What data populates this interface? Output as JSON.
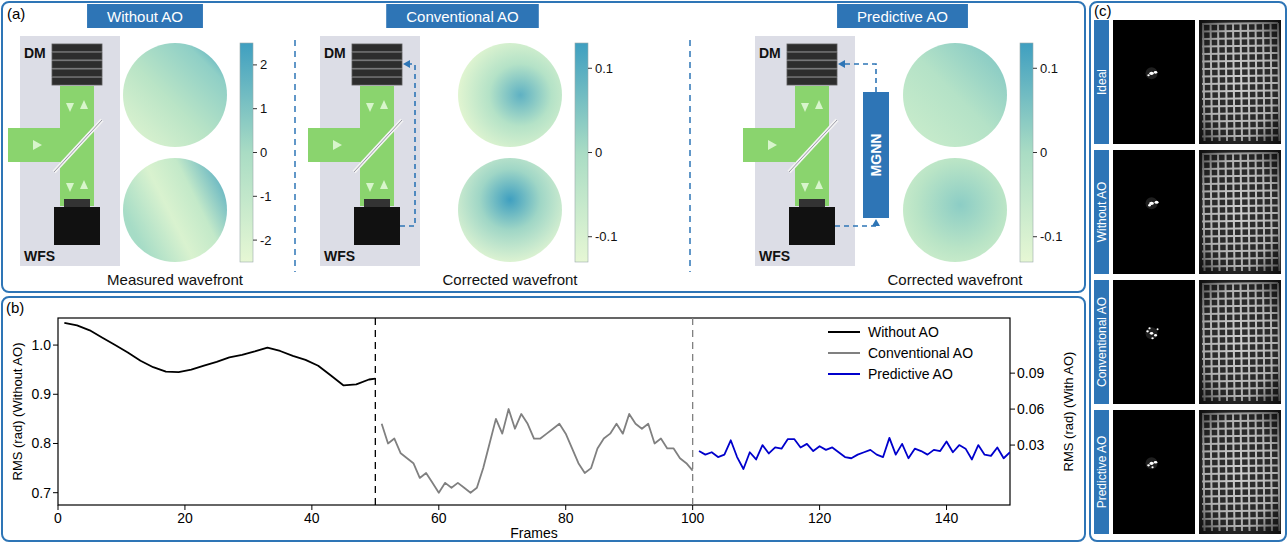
{
  "chart_data": {
    "type": "line",
    "xlabel": "Frames",
    "ylabel": "RMS (rad) (Without AO)",
    "y2label": "RMS (rad) (With AO)",
    "xlim": [
      0,
      150
    ],
    "xticks": [
      0,
      20,
      40,
      60,
      80,
      100,
      120,
      140
    ],
    "ylim": [
      0.675,
      1.055
    ],
    "yticks": [
      0.7,
      0.8,
      0.9,
      {
        "value": 1,
        "label": "1.0"
      }
    ],
    "y2lim": [
      -0.02,
      0.136
    ],
    "y2ticks": [
      0.03,
      0.06,
      0.09
    ],
    "legend": "upper right",
    "series": [
      {
        "name": "Without AO",
        "color": "#000000",
        "x": [
          1,
          3,
          5,
          7,
          9,
          11,
          13,
          15,
          17,
          19,
          21,
          23,
          25,
          27,
          29,
          31,
          33,
          35,
          37,
          39,
          41,
          43,
          45,
          47,
          49,
          50
        ],
        "values": [
          1.045,
          1.04,
          1.03,
          1.015,
          1.0,
          0.985,
          0.968,
          0.955,
          0.946,
          0.945,
          0.95,
          0.958,
          0.966,
          0.975,
          0.98,
          0.987,
          0.995,
          0.988,
          0.978,
          0.97,
          0.958,
          0.938,
          0.918,
          0.92,
          0.93,
          0.932
        ]
      },
      {
        "name": "Conventional AO",
        "color": "#808080",
        "x": [
          51,
          52,
          53,
          54,
          55,
          56,
          57,
          58,
          59,
          60,
          61,
          62,
          63,
          64,
          65,
          66,
          67,
          68,
          69,
          70,
          71,
          72,
          73,
          74,
          75,
          76,
          77,
          78,
          79,
          80,
          81,
          82,
          83,
          84,
          85,
          86,
          87,
          88,
          89,
          90,
          91,
          92,
          93,
          94,
          95,
          96,
          97,
          98,
          99,
          100
        ],
        "values": [
          0.84,
          0.8,
          0.81,
          0.78,
          0.77,
          0.76,
          0.73,
          0.74,
          0.72,
          0.7,
          0.72,
          0.71,
          0.72,
          0.71,
          0.7,
          0.71,
          0.75,
          0.8,
          0.85,
          0.82,
          0.87,
          0.83,
          0.86,
          0.84,
          0.81,
          0.81,
          0.82,
          0.83,
          0.84,
          0.82,
          0.79,
          0.76,
          0.74,
          0.75,
          0.79,
          0.81,
          0.82,
          0.84,
          0.82,
          0.86,
          0.84,
          0.83,
          0.84,
          0.8,
          0.81,
          0.79,
          0.79,
          0.77,
          0.76,
          0.745
        ]
      },
      {
        "name": "Predictive AO",
        "color": "#0000cc",
        "axis": "y2",
        "x": [
          101,
          102,
          103,
          104,
          105,
          106,
          107,
          108,
          109,
          110,
          111,
          112,
          113,
          114,
          115,
          116,
          117,
          118,
          119,
          120,
          121,
          122,
          123,
          124,
          125,
          126,
          127,
          128,
          129,
          130,
          131,
          132,
          133,
          134,
          135,
          136,
          137,
          138,
          139,
          140,
          141,
          142,
          143,
          144,
          145,
          146,
          147,
          148,
          149,
          150
        ],
        "values": [
          0.025,
          0.022,
          0.024,
          0.02,
          0.022,
          0.034,
          0.02,
          0.01,
          0.024,
          0.018,
          0.03,
          0.023,
          0.028,
          0.027,
          0.035,
          0.035,
          0.028,
          0.031,
          0.025,
          0.029,
          0.026,
          0.028,
          0.024,
          0.02,
          0.019,
          0.022,
          0.024,
          0.026,
          0.022,
          0.02,
          0.036,
          0.022,
          0.031,
          0.019,
          0.027,
          0.025,
          0.022,
          0.026,
          0.025,
          0.033,
          0.024,
          0.03,
          0.027,
          0.018,
          0.03,
          0.022,
          0.021,
          0.028,
          0.019,
          0.024
        ]
      }
    ]
  },
  "figure": {
    "panel_a": {
      "letter": "(a)",
      "sections": [
        {
          "title": "Without AO",
          "caption": "Measured wavefront",
          "dm_label": "DM",
          "wfs_label": "WFS",
          "colorbar": {
            "lim": [
              -2.5,
              2.5
            ],
            "ticks": [
              2,
              1,
              0,
              -1,
              -2
            ]
          }
        },
        {
          "title": "Conventional AO",
          "caption": "Corrected wavefront",
          "dm_label": "DM",
          "wfs_label": "WFS",
          "colorbar": {
            "lim": [
              -0.13,
              0.13
            ],
            "ticks": [
              0.1,
              0,
              -0.1
            ]
          }
        },
        {
          "title": "Predictive AO",
          "caption": "Corrected wavefront",
          "dm_label": "DM",
          "wfs_label": "WFS",
          "model": "MGNN",
          "colorbar": {
            "lim": [
              -0.13,
              0.13
            ],
            "ticks": [
              0.1,
              0,
              -0.1
            ]
          }
        }
      ]
    },
    "panel_b": {
      "letter": "(b)"
    },
    "panel_c": {
      "letter": "(c)",
      "rows": [
        "Ideal",
        "Without AO",
        "Conventional AO",
        "Predictive AO"
      ]
    }
  }
}
